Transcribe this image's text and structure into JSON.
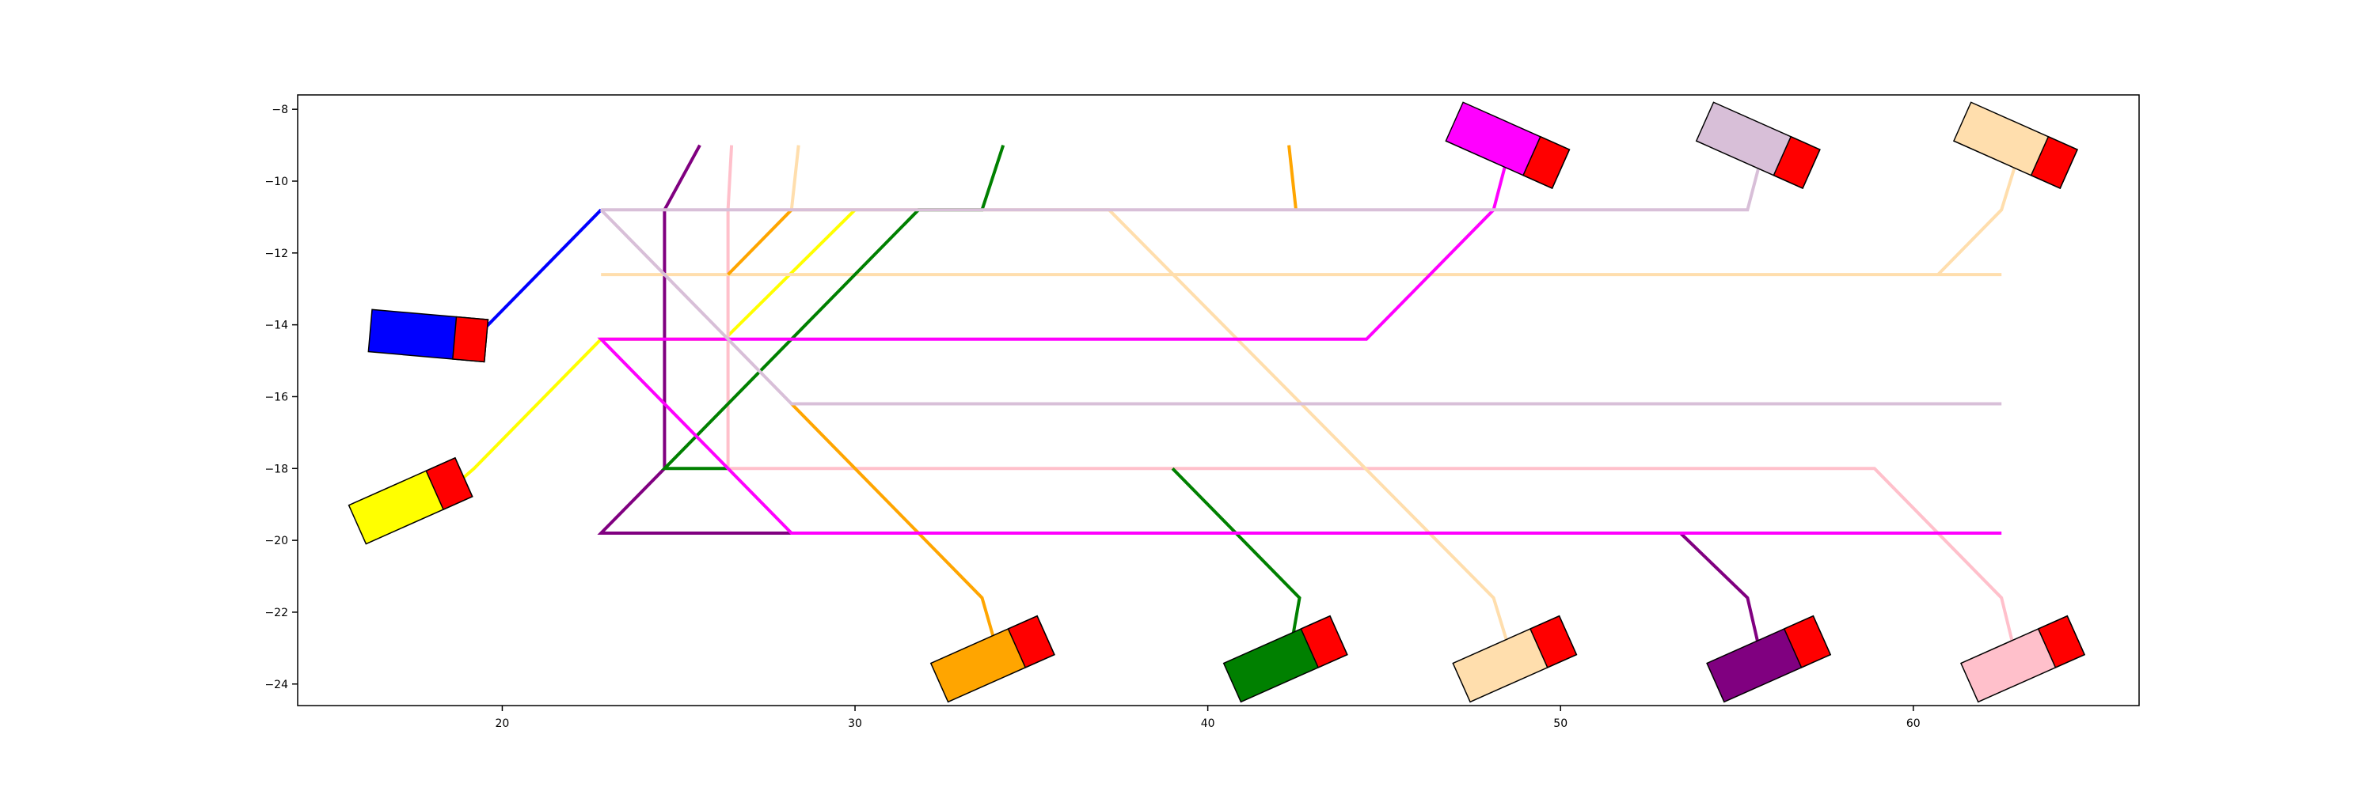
{
  "chart_data": {
    "type": "line",
    "title": "",
    "xlabel": "",
    "ylabel": "",
    "xlim": [
      14.2,
      66.4
    ],
    "ylim": [
      -24.6,
      -7.6
    ],
    "x_ticks": [
      20,
      30,
      40,
      50,
      60
    ],
    "y_ticks": [
      -8,
      -10,
      -12,
      -14,
      -16,
      -18,
      -20,
      -22,
      -24
    ],
    "grid": false,
    "legend": "none",
    "series": [
      {
        "color": "#0000ff",
        "points": [
          [
            18.6,
            -14.3
          ],
          [
            19.2,
            -14.4
          ],
          [
            22.8,
            -10.8
          ]
        ]
      },
      {
        "color": "#ffff00",
        "points": [
          [
            18.5,
            -18.6
          ],
          [
            19.2,
            -18.0
          ],
          [
            22.8,
            -14.4
          ],
          [
            26.3,
            -14.4
          ],
          [
            30.0,
            -10.8
          ]
        ]
      },
      {
        "color": "#800080",
        "points": [
          [
            25.6,
            -9.0
          ],
          [
            24.6,
            -10.8
          ],
          [
            24.6,
            -18.0
          ],
          [
            22.8,
            -19.8
          ],
          [
            28.2,
            -19.8
          ]
        ]
      },
      {
        "color": "#800080",
        "points": [
          [
            53.4,
            -19.8
          ],
          [
            55.3,
            -21.6
          ],
          [
            55.7,
            -23.3
          ]
        ]
      },
      {
        "color": "#ffc0cb",
        "points": [
          [
            26.5,
            -9.0
          ],
          [
            26.4,
            -10.8
          ],
          [
            26.4,
            -18.0
          ],
          [
            58.9,
            -18.0
          ],
          [
            62.5,
            -21.6
          ],
          [
            62.9,
            -23.2
          ]
        ]
      },
      {
        "color": "#ffdead",
        "points": [
          [
            28.4,
            -9.0
          ],
          [
            28.2,
            -10.8
          ],
          [
            37.2,
            -10.8
          ],
          [
            48.1,
            -21.6
          ],
          [
            48.6,
            -23.2
          ]
        ]
      },
      {
        "color": "#ffdead",
        "points": [
          [
            22.8,
            -12.6
          ],
          [
            62.5,
            -12.6
          ]
        ]
      },
      {
        "color": "#ffdead",
        "points": [
          [
            60.7,
            -12.6
          ],
          [
            62.5,
            -10.8
          ],
          [
            63.0,
            -9.2
          ]
        ]
      },
      {
        "color": "#ffa500",
        "points": [
          [
            28.2,
            -10.8
          ],
          [
            26.4,
            -12.6
          ]
        ]
      },
      {
        "color": "#ffa500",
        "points": [
          [
            28.2,
            -16.2
          ],
          [
            33.6,
            -21.6
          ],
          [
            34.1,
            -23.3
          ]
        ]
      },
      {
        "color": "#ffa500",
        "points": [
          [
            42.3,
            -9.0
          ],
          [
            42.5,
            -10.8
          ]
        ]
      },
      {
        "color": "#008000",
        "points": [
          [
            34.2,
            -9.0
          ],
          [
            33.6,
            -10.8
          ],
          [
            31.8,
            -10.8
          ],
          [
            24.6,
            -18.0
          ],
          [
            26.4,
            -18.0
          ]
        ]
      },
      {
        "color": "#008000",
        "points": [
          [
            39.0,
            -18.0
          ],
          [
            42.6,
            -21.6
          ],
          [
            42.3,
            -23.3
          ]
        ]
      },
      {
        "color": "#ff00ff",
        "points": [
          [
            48.5,
            -9.3
          ],
          [
            48.1,
            -10.8
          ],
          [
            44.5,
            -14.4
          ],
          [
            22.8,
            -14.4
          ],
          [
            28.2,
            -19.8
          ],
          [
            62.5,
            -19.8
          ]
        ]
      },
      {
        "color": "#d8bfd8",
        "points": [
          [
            22.8,
            -10.8
          ],
          [
            55.3,
            -10.8
          ],
          [
            55.7,
            -9.3
          ]
        ]
      },
      {
        "color": "#d8bfd8",
        "points": [
          [
            22.8,
            -10.8
          ],
          [
            28.2,
            -16.2
          ],
          [
            62.5,
            -16.2
          ]
        ]
      }
    ],
    "cars": [
      {
        "color": "#0000ff",
        "cx": 17.9,
        "cy": -14.3,
        "angle": 5
      },
      {
        "color": "#ffff00",
        "cx": 17.4,
        "cy": -18.9,
        "angle": -24
      },
      {
        "color": "#ff00ff",
        "cx": 48.5,
        "cy": -9.0,
        "angle": 24
      },
      {
        "color": "#d8bfd8",
        "cx": 55.6,
        "cy": -9.0,
        "angle": 24
      },
      {
        "color": "#ffdead",
        "cx": 62.9,
        "cy": -9.0,
        "angle": 24
      },
      {
        "color": "#ffa500",
        "cx": 33.9,
        "cy": -23.3,
        "angle": -24
      },
      {
        "color": "#008000",
        "cx": 42.2,
        "cy": -23.3,
        "angle": -24
      },
      {
        "color": "#ffdead",
        "cx": 48.7,
        "cy": -23.3,
        "angle": -24
      },
      {
        "color": "#800080",
        "cx": 55.9,
        "cy": -23.3,
        "angle": -24
      },
      {
        "color": "#ffc0cb",
        "cx": 63.1,
        "cy": -23.3,
        "angle": -24
      }
    ]
  }
}
